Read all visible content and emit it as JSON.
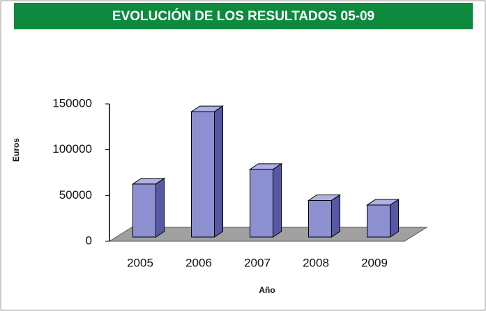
{
  "chart_data": {
    "type": "bar",
    "title": "EVOLUCIÓN DE LOS RESULTADOS 05-09",
    "xlabel": "Año",
    "ylabel": "Euros",
    "categories": [
      "2005",
      "2006",
      "2007",
      "2008",
      "2009"
    ],
    "values": [
      58000,
      137000,
      74000,
      40000,
      35000
    ],
    "color": "#8c8fd0",
    "ylim": [
      0,
      150000
    ],
    "yticks": [
      0,
      50000,
      100000,
      150000
    ],
    "grid": false
  }
}
